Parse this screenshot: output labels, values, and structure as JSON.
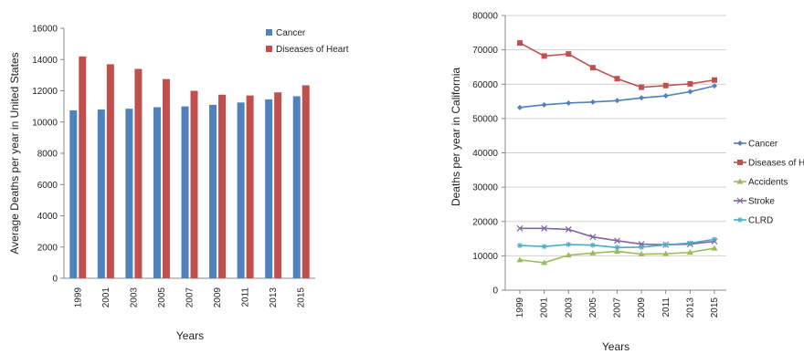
{
  "chart_data": [
    {
      "type": "bar",
      "title": "",
      "xlabel": "Years",
      "ylabel": "Average Deaths per year in United States",
      "categories": [
        "1999",
        "2001",
        "2003",
        "2005",
        "2007",
        "2009",
        "2011",
        "2013",
        "2015"
      ],
      "ylim": [
        0,
        16000
      ],
      "yticks": [
        0,
        2000,
        4000,
        6000,
        8000,
        10000,
        12000,
        14000,
        16000
      ],
      "grid": false,
      "legend_position": "top-right",
      "series": [
        {
          "name": "Cancer",
          "color": "#4f81bd",
          "values": [
            10750,
            10800,
            10850,
            10950,
            11000,
            11100,
            11250,
            11450,
            11650
          ]
        },
        {
          "name": "Diseases of Heart",
          "color": "#c0504d",
          "values": [
            14200,
            13700,
            13400,
            12750,
            12000,
            11750,
            11700,
            11900,
            12350
          ]
        }
      ]
    },
    {
      "type": "line",
      "title": "",
      "xlabel": "Years",
      "ylabel": "Deaths per year in California",
      "categories": [
        "1999",
        "2001",
        "2003",
        "2005",
        "2007",
        "2009",
        "2011",
        "2013",
        "2015"
      ],
      "ylim": [
        0,
        80000
      ],
      "yticks": [
        0,
        10000,
        20000,
        30000,
        40000,
        50000,
        60000,
        70000,
        80000
      ],
      "grid": true,
      "legend_position": "right",
      "series": [
        {
          "name": "Cancer",
          "color": "#4f81bd",
          "marker": "diamond",
          "values": [
            53200,
            54000,
            54500,
            54800,
            55200,
            56000,
            56600,
            57800,
            59500
          ]
        },
        {
          "name": "Diseases of H",
          "color": "#c0504d",
          "marker": "square",
          "values": [
            72000,
            68200,
            68800,
            64800,
            61600,
            59100,
            59600,
            60100,
            61200
          ]
        },
        {
          "name": "Accidents",
          "color": "#9bbb59",
          "marker": "triangle",
          "values": [
            8800,
            8000,
            10200,
            10800,
            11300,
            10500,
            10600,
            11000,
            12200
          ]
        },
        {
          "name": "Stroke",
          "color": "#8064a2",
          "marker": "cross",
          "values": [
            18000,
            18000,
            17700,
            15500,
            14400,
            13400,
            13200,
            13400,
            14200
          ]
        },
        {
          "name": "CLRD",
          "color": "#4bacc6",
          "marker": "star",
          "values": [
            13000,
            12700,
            13300,
            13100,
            12400,
            12500,
            13200,
            13700,
            14800
          ]
        }
      ]
    }
  ]
}
